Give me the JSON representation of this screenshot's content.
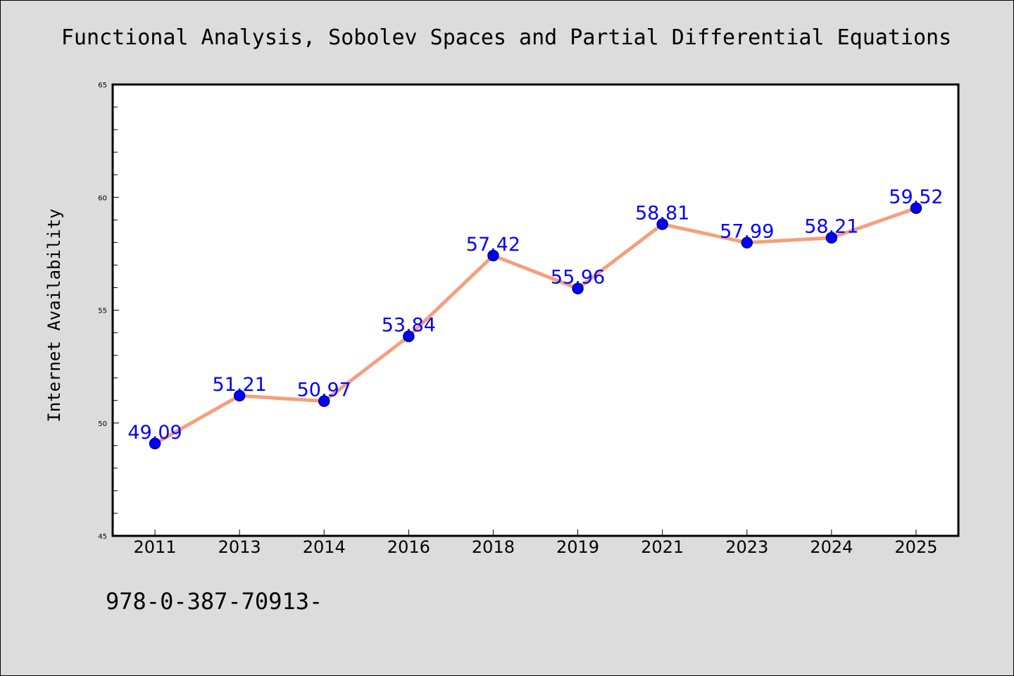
{
  "chart_data": {
    "type": "line",
    "title": "Functional Analysis, Sobolev Spaces and Partial Differential Equations",
    "xlabel": "",
    "ylabel": "Internet Availability",
    "categories": [
      "2011",
      "2013",
      "2014",
      "2016",
      "2018",
      "2019",
      "2021",
      "2023",
      "2024",
      "2025"
    ],
    "series": [
      {
        "values": [
          49.09,
          51.21,
          50.97,
          53.84,
          57.42,
          55.96,
          58.81,
          57.99,
          58.21,
          59.52
        ],
        "labels": [
          "49.09",
          "51.21",
          "50.97",
          "53.84",
          "57.42",
          "55.96",
          "58.81",
          "57.99",
          "58.21",
          "59.52"
        ]
      }
    ],
    "ylim": [
      45,
      65
    ],
    "yticks": [
      45,
      50,
      55,
      60,
      65
    ],
    "ytick_labels": [
      "45",
      "50",
      "55",
      "60",
      "65"
    ],
    "y_minor_step": 1,
    "grid": false,
    "colors": {
      "line": "#f4a07c",
      "marker": "#0000ff",
      "marker_edge": "#000080",
      "data_label": "#0000ff",
      "background": "#dcdcdc",
      "plot_background": "#ffffff"
    }
  },
  "footer": {
    "text": "978-0-387-70913-"
  }
}
